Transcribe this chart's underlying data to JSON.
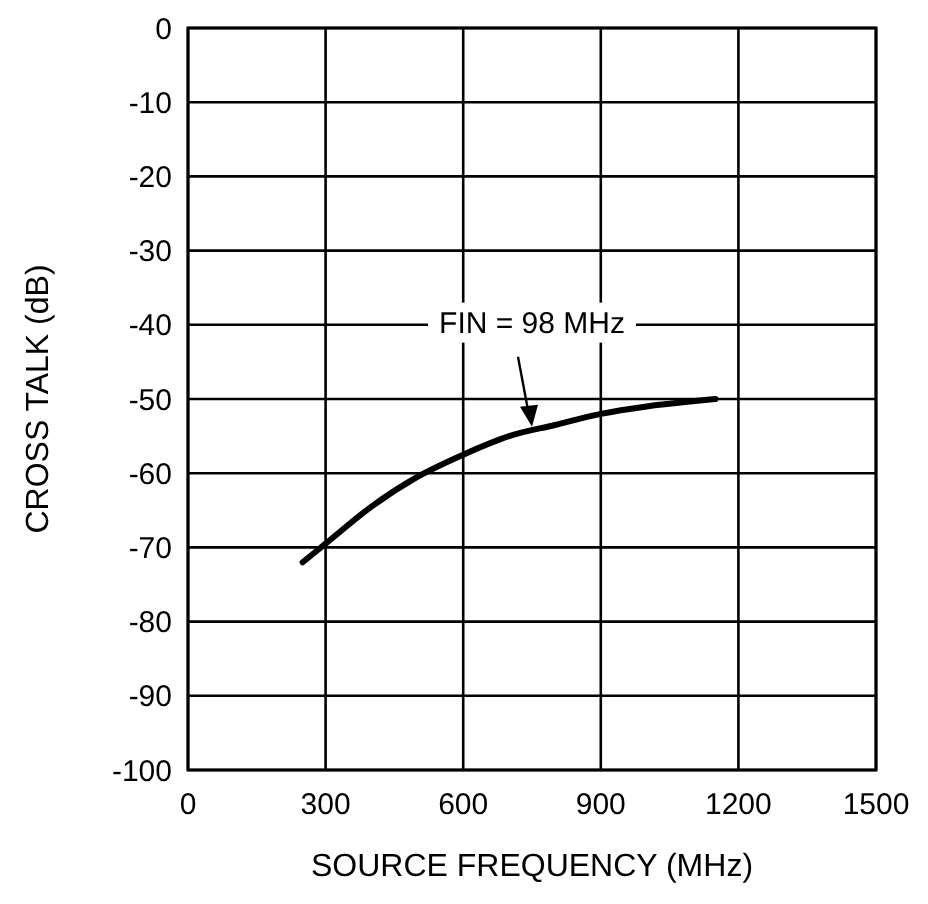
{
  "chart_data": {
    "type": "line",
    "xlabel": "SOURCE FREQUENCY (MHz)",
    "ylabel": "CROSS TALK (dB)",
    "series": [
      {
        "color": "#000000",
        "x": [
          250,
          300,
          400,
          500,
          600,
          700,
          800,
          900,
          1000,
          1100,
          1150
        ],
        "values": [
          -72,
          -69.5,
          -64.5,
          -60.5,
          -57.5,
          -55,
          -53.5,
          -52,
          -51,
          -50.3,
          -50
        ]
      }
    ],
    "xlim": [
      0,
      1500
    ],
    "xticks": [
      0,
      300,
      600,
      900,
      1200,
      1500
    ],
    "ylim": [
      -100,
      0
    ],
    "yticks": [
      -100,
      -90,
      -80,
      -70,
      -60,
      -50,
      -40,
      -30,
      -20,
      -10,
      0
    ],
    "grid": true,
    "line_style": "solid",
    "marker": "none",
    "annotations": [
      {
        "text": "FIN = 98 MHz",
        "x": 750,
        "y": -54
      }
    ]
  }
}
